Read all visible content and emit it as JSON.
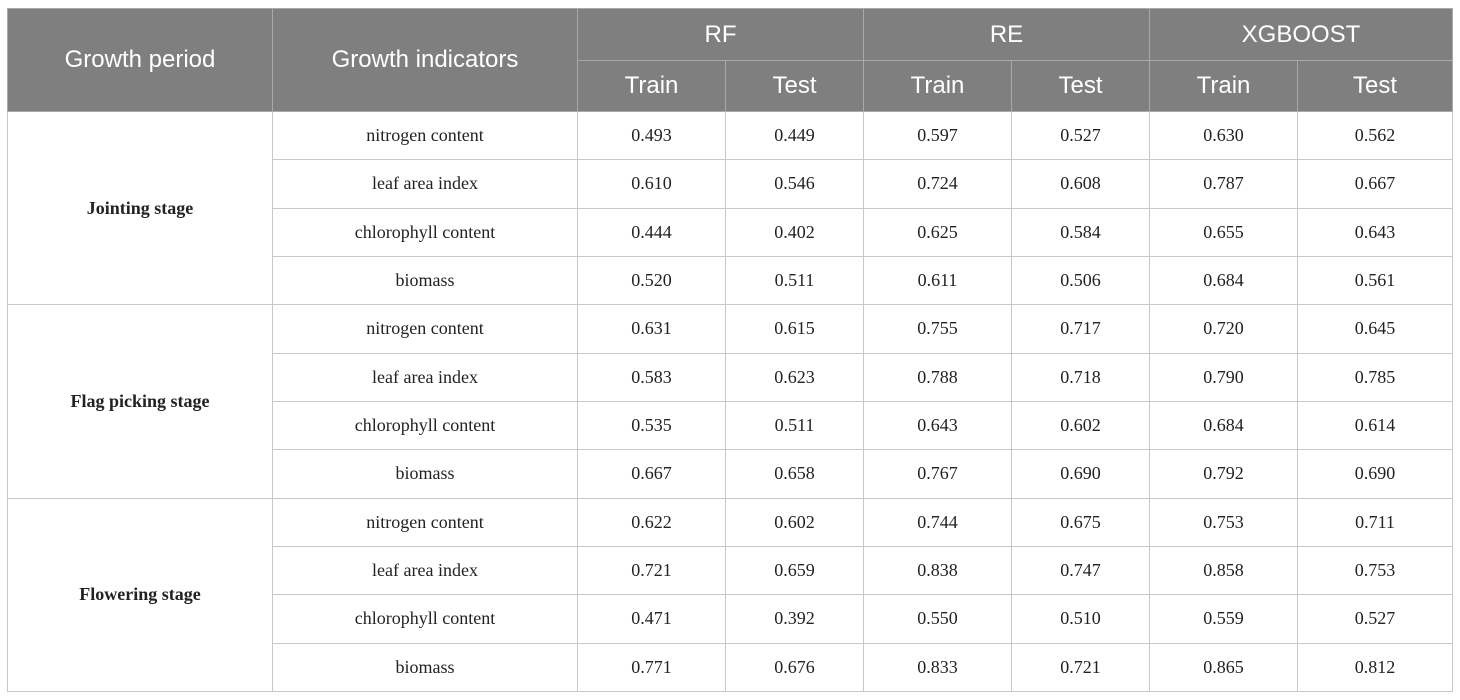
{
  "header": {
    "growth_period": "Growth period",
    "growth_indicators": "Growth indicators",
    "models": [
      "RF",
      "RE",
      "XGBOOST"
    ],
    "train": "Train",
    "test": "Test"
  },
  "groups": [
    {
      "period": "Jointing stage",
      "rows": [
        {
          "indicator": "nitrogen content",
          "values": [
            "0.493",
            "0.449",
            "0.597",
            "0.527",
            "0.630",
            "0.562"
          ]
        },
        {
          "indicator": "leaf area index",
          "values": [
            "0.610",
            "0.546",
            "0.724",
            "0.608",
            "0.787",
            "0.667"
          ]
        },
        {
          "indicator": "chlorophyll content",
          "values": [
            "0.444",
            "0.402",
            "0.625",
            "0.584",
            "0.655",
            "0.643"
          ]
        },
        {
          "indicator": "biomass",
          "values": [
            "0.520",
            "0.511",
            "0.611",
            "0.506",
            "0.684",
            "0.561"
          ]
        }
      ]
    },
    {
      "period": "Flag picking stage",
      "rows": [
        {
          "indicator": "nitrogen content",
          "values": [
            "0.631",
            "0.615",
            "0.755",
            "0.717",
            "0.720",
            "0.645"
          ]
        },
        {
          "indicator": "leaf area index",
          "values": [
            "0.583",
            "0.623",
            "0.788",
            "0.718",
            "0.790",
            "0.785"
          ]
        },
        {
          "indicator": "chlorophyll content",
          "values": [
            "0.535",
            "0.511",
            "0.643",
            "0.602",
            "0.684",
            "0.614"
          ]
        },
        {
          "indicator": "biomass",
          "values": [
            "0.667",
            "0.658",
            "0.767",
            "0.690",
            "0.792",
            "0.690"
          ]
        }
      ]
    },
    {
      "period": "Flowering stage",
      "rows": [
        {
          "indicator": "nitrogen content",
          "values": [
            "0.622",
            "0.602",
            "0.744",
            "0.675",
            "0.753",
            "0.711"
          ]
        },
        {
          "indicator": "leaf area index",
          "values": [
            "0.721",
            "0.659",
            "0.838",
            "0.747",
            "0.858",
            "0.753"
          ]
        },
        {
          "indicator": "chlorophyll content",
          "values": [
            "0.471",
            "0.392",
            "0.550",
            "0.510",
            "0.559",
            "0.527"
          ]
        },
        {
          "indicator": "biomass",
          "values": [
            "0.771",
            "0.676",
            "0.833",
            "0.721",
            "0.865",
            "0.812"
          ]
        }
      ]
    }
  ]
}
